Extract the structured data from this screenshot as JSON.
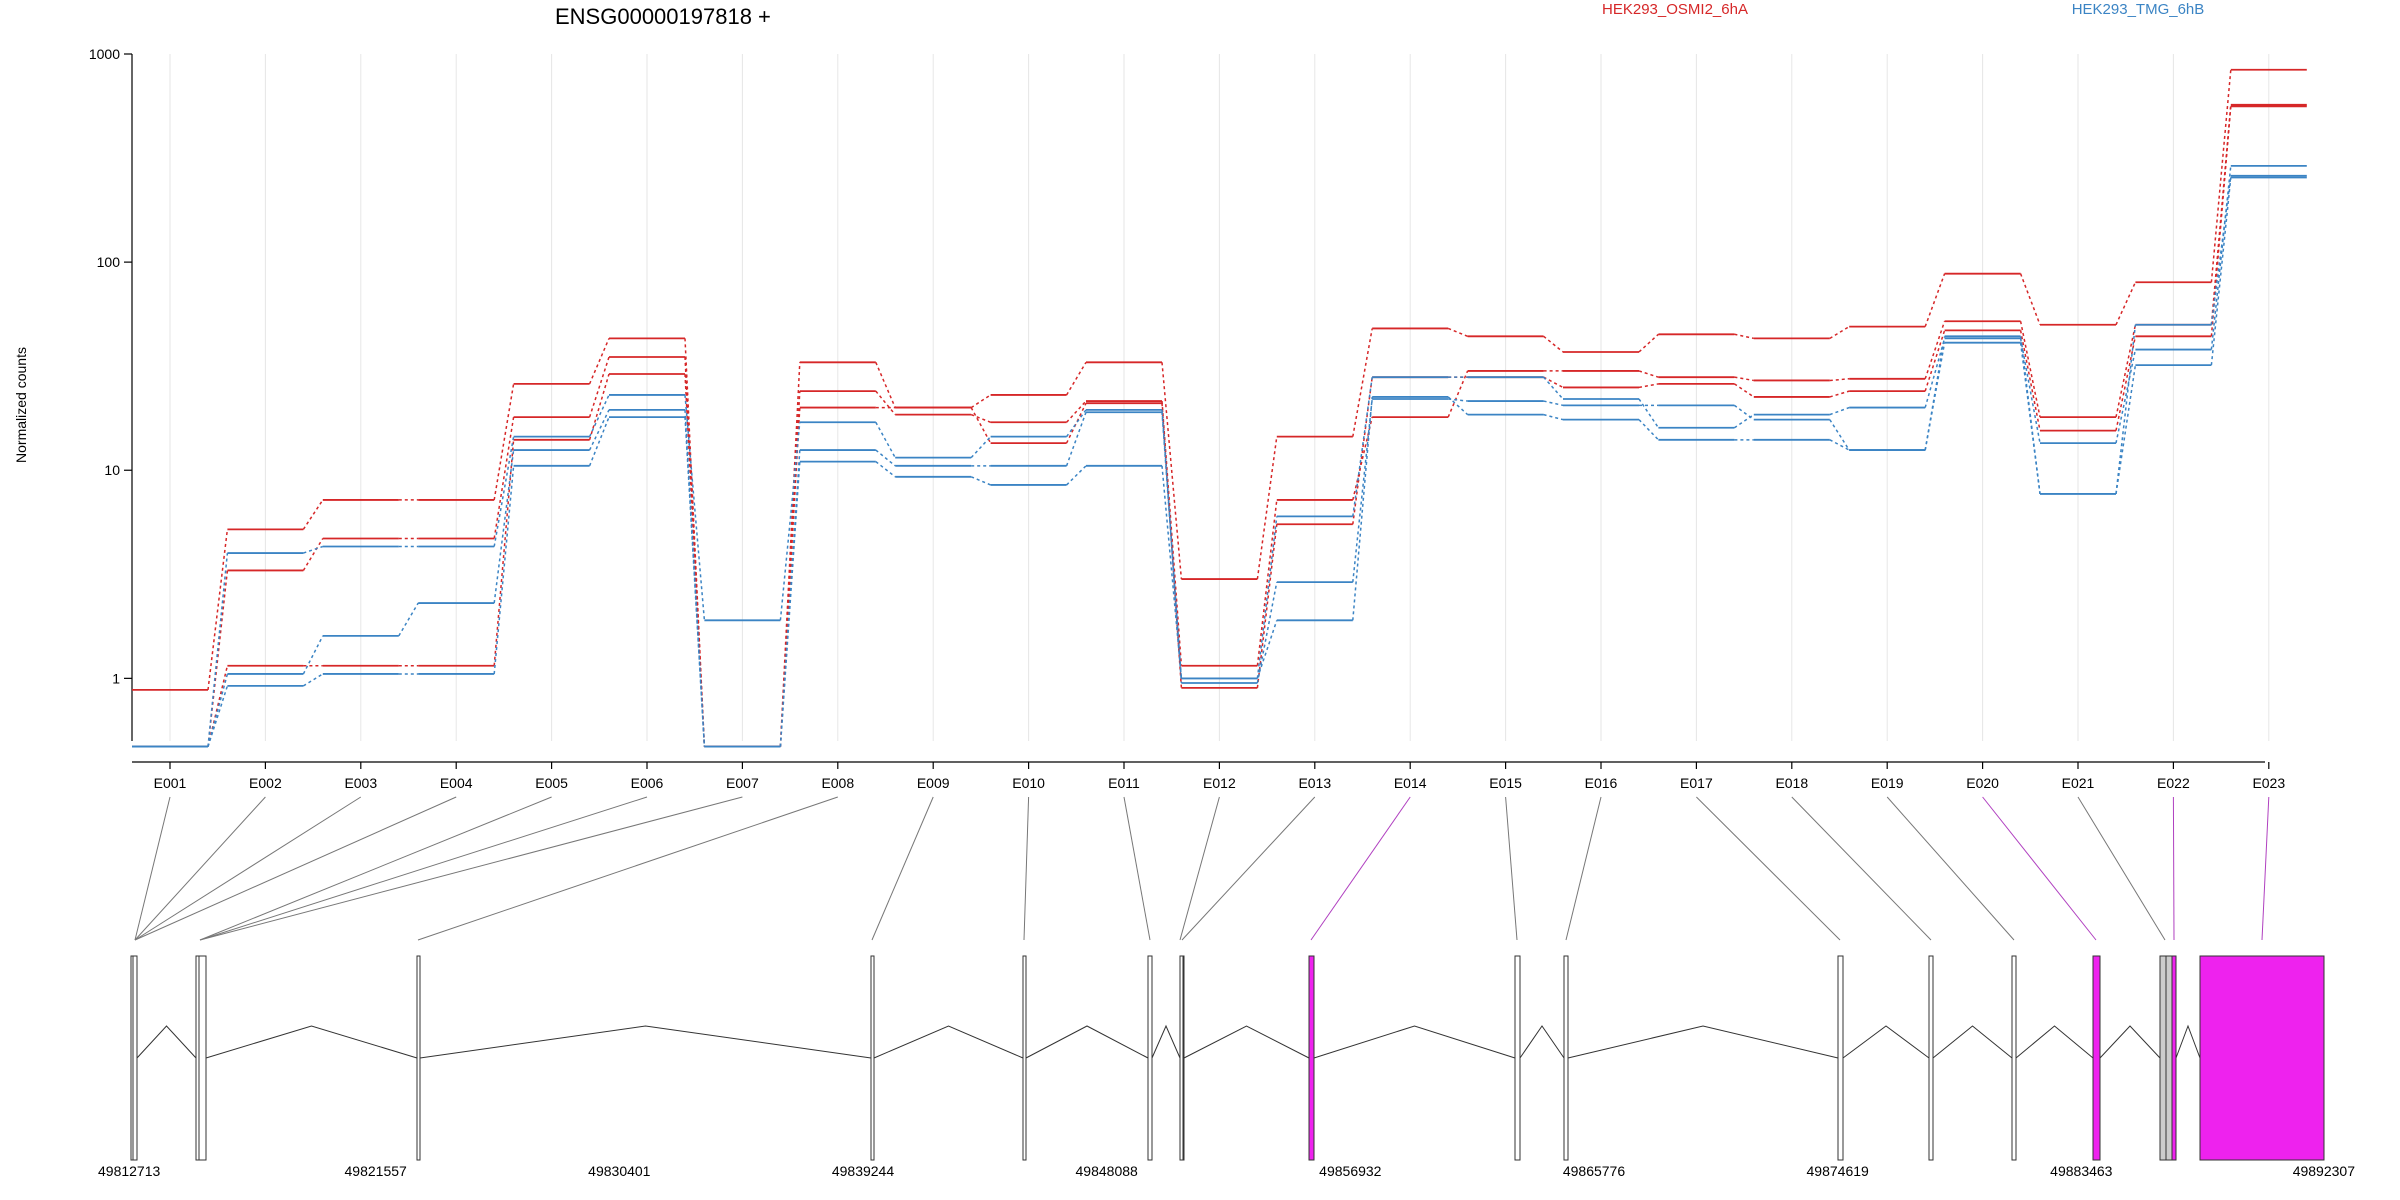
{
  "chart_data": {
    "type": "line",
    "title": "ENSG00000197818 +",
    "ylabel": "Normalized counts",
    "y_scale": "log",
    "ylim": [
      0.5,
      1000
    ],
    "y_ticks": [
      1,
      10,
      100,
      1000
    ],
    "y_tick_labels": [
      "1",
      "10",
      "100",
      "1000"
    ],
    "grid": "vertical",
    "categories": [
      "E001",
      "E002",
      "E003",
      "E004",
      "E005",
      "E006",
      "E007",
      "E008",
      "E009",
      "E010",
      "E011",
      "E012",
      "E013",
      "E014",
      "E015",
      "E016",
      "E017",
      "E018",
      "E019",
      "E020",
      "E021",
      "E022",
      "E023"
    ],
    "legend": [
      {
        "name": "HEK293_OSMI2_6hA",
        "color": "#d62728",
        "position": "top-center"
      },
      {
        "name": "HEK293_TMG_6hB",
        "color": "#3b84c4",
        "position": "top-right"
      }
    ],
    "series": [
      {
        "group": "HEK293_OSMI2_6hA",
        "color": "#d62728",
        "values": [
          0.88,
          5.2,
          7.2,
          7.2,
          26,
          43,
          0.47,
          33,
          20,
          23,
          33,
          3.0,
          14.5,
          48,
          44,
          37,
          45,
          43,
          49,
          88,
          50,
          80,
          840
        ]
      },
      {
        "group": "HEK293_OSMI2_6hA",
        "color": "#d62728",
        "values": [
          0.47,
          3.3,
          4.7,
          4.7,
          18,
          35,
          0.47,
          24,
          18.5,
          17,
          21.5,
          1.15,
          7.2,
          18,
          30,
          30,
          28,
          27,
          27.5,
          52,
          18,
          50,
          570
        ]
      },
      {
        "group": "HEK293_OSMI2_6hA",
        "color": "#d62728",
        "values": [
          0.47,
          1.15,
          1.15,
          1.15,
          14,
          29,
          0.47,
          20,
          20,
          13.5,
          21,
          0.9,
          5.5,
          28,
          28,
          25,
          26,
          22.5,
          24,
          47,
          15.5,
          44,
          560
        ]
      },
      {
        "group": "HEK293_TMG_6hB",
        "color": "#3b84c4",
        "values": [
          0.47,
          4.0,
          4.3,
          4.3,
          14.5,
          23,
          1.9,
          17,
          11.5,
          14.5,
          19.5,
          1.0,
          6.0,
          28,
          28,
          22,
          16,
          18.5,
          20,
          43,
          13.5,
          38,
          290
        ]
      },
      {
        "group": "HEK293_TMG_6hB",
        "color": "#3b84c4",
        "values": [
          0.47,
          1.05,
          1.6,
          2.3,
          12.5,
          19.5,
          0.47,
          12.5,
          10.5,
          10.5,
          19,
          0.95,
          2.9,
          22,
          21.5,
          20.5,
          20.5,
          17.5,
          12.5,
          44,
          7.7,
          50,
          260
        ]
      },
      {
        "group": "HEK293_TMG_6hB",
        "color": "#3b84c4",
        "values": [
          0.47,
          0.92,
          1.05,
          1.05,
          10.5,
          18,
          0.47,
          11,
          9.3,
          8.5,
          10.5,
          1.0,
          1.9,
          22.5,
          18.5,
          17.5,
          14,
          14,
          12.5,
          41,
          7.7,
          32,
          255
        ]
      }
    ]
  },
  "gene_model": {
    "coordinate_labels": [
      "49812713",
      "49821557",
      "49830401",
      "49839244",
      "49848088",
      "49856932",
      "49865776",
      "49874619",
      "49883463",
      "49892307"
    ]
  }
}
